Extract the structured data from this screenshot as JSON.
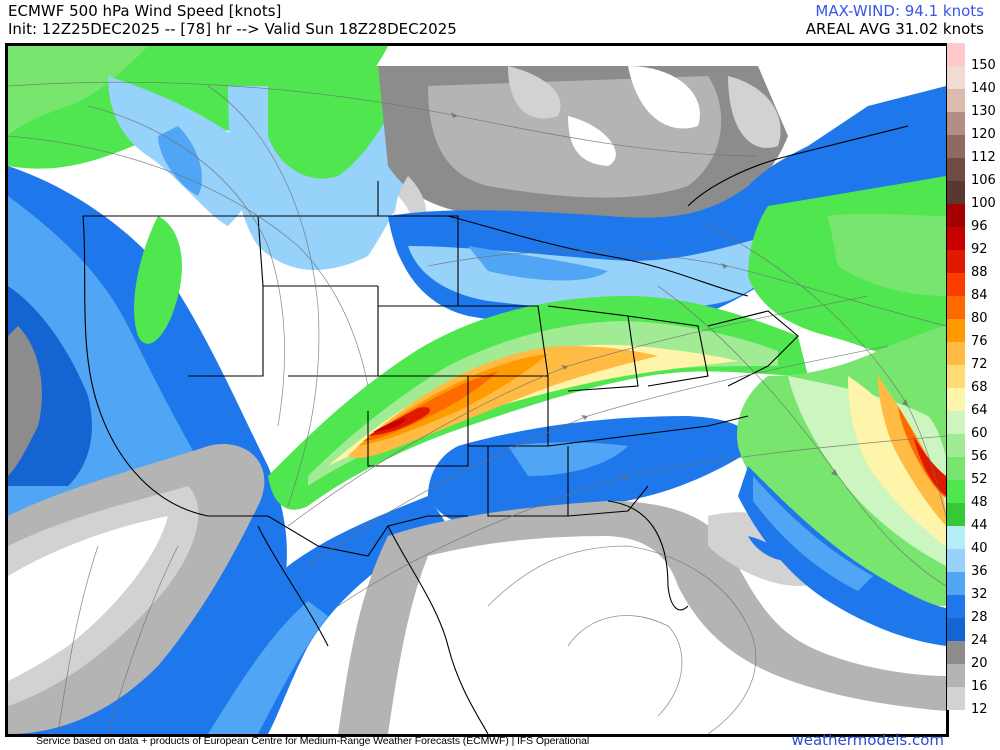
{
  "header": {
    "title": "ECMWF 500 hPa Wind Speed [knots]",
    "init_line": "Init: 12Z25DEC2025 -- [78] hr --> Valid Sun 18Z28DEC2025",
    "max_wind": "MAX-WIND: 94.1 knots",
    "areal_avg": "AREAL AVG 31.02 knots",
    "max_wind_color": "#3a55e6"
  },
  "legend": {
    "units": "knots",
    "bins": [
      {
        "label": "150",
        "color": "#ffc9c9"
      },
      {
        "label": "140",
        "color": "#f1dcd3"
      },
      {
        "label": "130",
        "color": "#dbbab0"
      },
      {
        "label": "120",
        "color": "#b28e86"
      },
      {
        "label": "112",
        "color": "#8e6b62"
      },
      {
        "label": "106",
        "color": "#6e4c44"
      },
      {
        "label": "100",
        "color": "#5a382f"
      },
      {
        "label": "96",
        "color": "#a50000"
      },
      {
        "label": "92",
        "color": "#c80000"
      },
      {
        "label": "88",
        "color": "#e01a00"
      },
      {
        "label": "84",
        "color": "#ff3c00"
      },
      {
        "label": "80",
        "color": "#ff6a00"
      },
      {
        "label": "76",
        "color": "#ff9a00"
      },
      {
        "label": "72",
        "color": "#ffbb44"
      },
      {
        "label": "68",
        "color": "#ffdc77"
      },
      {
        "label": "64",
        "color": "#fff5aa"
      },
      {
        "label": "60",
        "color": "#cdf5c0"
      },
      {
        "label": "56",
        "color": "#a0eb94"
      },
      {
        "label": "52",
        "color": "#78e66e"
      },
      {
        "label": "48",
        "color": "#50e650"
      },
      {
        "label": "44",
        "color": "#37c837"
      },
      {
        "label": "40",
        "color": "#b4ecf8"
      },
      {
        "label": "36",
        "color": "#96d2fa"
      },
      {
        "label": "32",
        "color": "#50a5f5"
      },
      {
        "label": "28",
        "color": "#1e78eb"
      },
      {
        "label": "24",
        "color": "#1464d2"
      },
      {
        "label": "20",
        "color": "#8c8c8c"
      },
      {
        "label": "16",
        "color": "#b4b4b4"
      },
      {
        "label": "12",
        "color": "#d2d2d2"
      }
    ]
  },
  "map": {
    "region": "North America / CONUS",
    "features": [
      {
        "name": "jet-core-southern-plains",
        "approx_speed_knots": "84-94",
        "location": "Texas Panhandle / Oklahoma / Kansas"
      },
      {
        "name": "atlantic-jet-max",
        "approx_speed_knots": "80-88",
        "location": "Western Atlantic east of Mid-Atlantic coast"
      },
      {
        "name": "low-wind-region",
        "approx_speed_knots": "<12",
        "location": "Gulf of Mexico / Mexico / Caribbean"
      },
      {
        "name": "low-wind-region-canada",
        "approx_speed_knots": "12-20",
        "location": "Hudson Bay / Northern Ontario / Quebec"
      }
    ]
  },
  "footer": {
    "credit": "Service based on data + products of European Centre for Medium-Range Weather Forecasts (ECMWF) | IFS Operational",
    "site": "weathermodels.com",
    "site_color": "#2a4fd6"
  }
}
